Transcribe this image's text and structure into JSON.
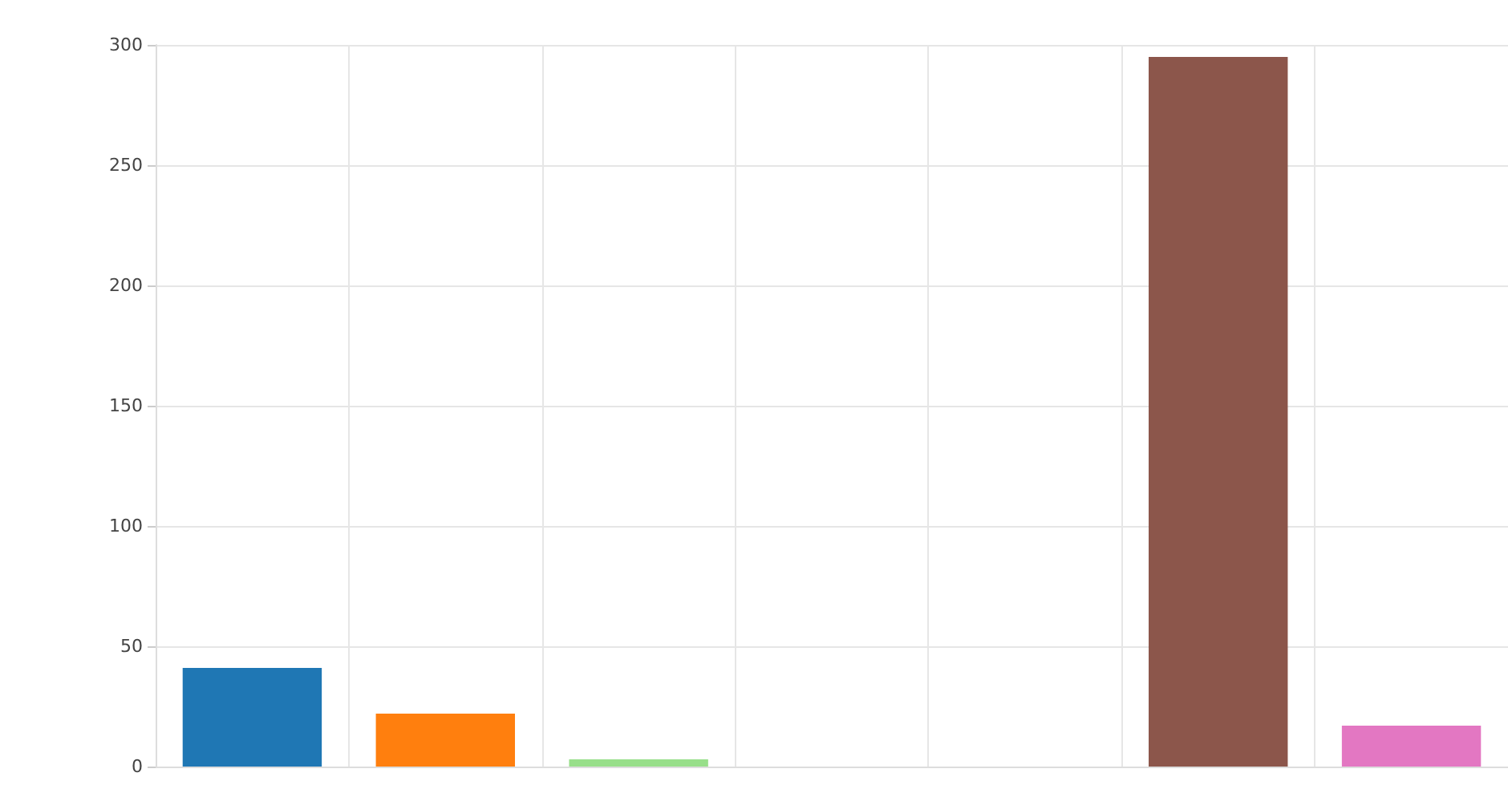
{
  "chart_data": {
    "type": "bar",
    "categories": [
      null,
      null,
      null,
      null,
      null,
      null,
      null
    ],
    "values": [
      41,
      22,
      3,
      null,
      null,
      295,
      17
    ],
    "colors": [
      "#1f77b4",
      "#ff7f0e",
      "#98df8a",
      "#d62728",
      "#9467bd",
      "#8c564b",
      "#e377c2"
    ],
    "ylim": [
      0,
      300
    ],
    "yticks": [
      0,
      50,
      100,
      150,
      200,
      250,
      300
    ],
    "grid": true
  }
}
